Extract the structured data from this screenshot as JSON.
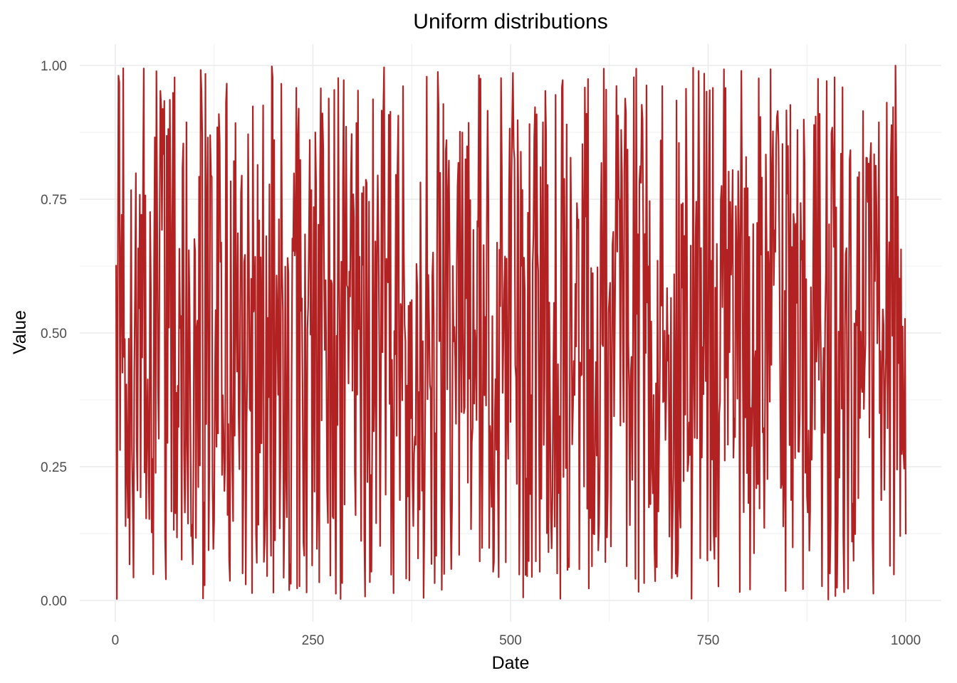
{
  "chart_data": {
    "type": "line",
    "title": "Uniform distributions",
    "xlabel": "Date",
    "ylabel": "Value",
    "xlim": [
      -45,
      1045
    ],
    "ylim": [
      -0.04,
      1.04
    ],
    "x_ticks": [
      0,
      250,
      500,
      750,
      1000
    ],
    "x_tick_labels": [
      "0",
      "250",
      "500",
      "750",
      "1000"
    ],
    "y_ticks": [
      0,
      0.25,
      0.5,
      0.75,
      1
    ],
    "y_tick_labels": [
      "0.00",
      "0.25",
      "0.50",
      "0.75",
      "1.00"
    ],
    "x_minor_ticks": [
      125,
      375,
      625,
      875
    ],
    "y_minor_ticks": [
      0.125,
      0.375,
      0.625,
      0.875
    ],
    "grid": true,
    "legend": "none",
    "series": [
      {
        "name": "Value",
        "color": "#b22222",
        "n_points": 1000,
        "x_start": 1,
        "distribution": "uniform(0, 1)",
        "seed": 1
      }
    ]
  }
}
